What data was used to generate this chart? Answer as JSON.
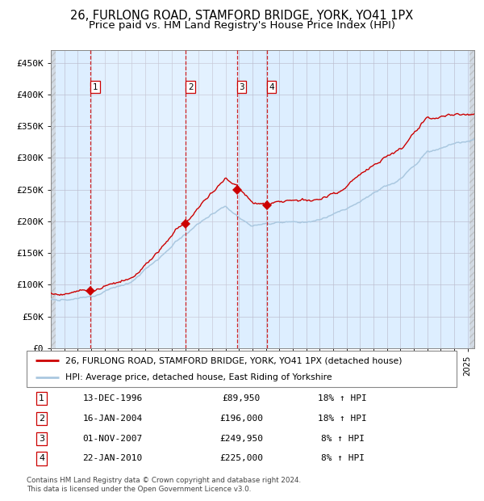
{
  "title": "26, FURLONG ROAD, STAMFORD BRIDGE, YORK, YO41 1PX",
  "subtitle": "Price paid vs. HM Land Registry's House Price Index (HPI)",
  "ylim": [
    0,
    470000
  ],
  "yticks": [
    0,
    50000,
    100000,
    150000,
    200000,
    250000,
    300000,
    350000,
    400000,
    450000
  ],
  "ytick_labels": [
    "£0",
    "£50K",
    "£100K",
    "£150K",
    "£200K",
    "£250K",
    "£300K",
    "£350K",
    "£400K",
    "£450K"
  ],
  "hpi_color": "#aac8e0",
  "price_color": "#cc0000",
  "vline_color": "#cc0000",
  "plot_bg_color": "#ddeeff",
  "sale_dates_num": [
    1996.95,
    2004.04,
    2007.84,
    2010.06
  ],
  "sale_prices": [
    89950,
    196000,
    249950,
    225000
  ],
  "sale_labels": [
    "1",
    "2",
    "3",
    "4"
  ],
  "legend_price_label": "26, FURLONG ROAD, STAMFORD BRIDGE, YORK, YO41 1PX (detached house)",
  "legend_hpi_label": "HPI: Average price, detached house, East Riding of Yorkshire",
  "table_rows": [
    [
      "1",
      "13-DEC-1996",
      "£89,950",
      "18% ↑ HPI"
    ],
    [
      "2",
      "16-JAN-2004",
      "£196,000",
      "18% ↑ HPI"
    ],
    [
      "3",
      "01-NOV-2007",
      "£249,950",
      "8% ↑ HPI"
    ],
    [
      "4",
      "22-JAN-2010",
      "£225,000",
      "8% ↑ HPI"
    ]
  ],
  "footer": "Contains HM Land Registry data © Crown copyright and database right 2024.\nThis data is licensed under the Open Government Licence v3.0.",
  "title_fontsize": 10.5,
  "subtitle_fontsize": 9.5,
  "xstart": 1994,
  "xend": 2025.5
}
